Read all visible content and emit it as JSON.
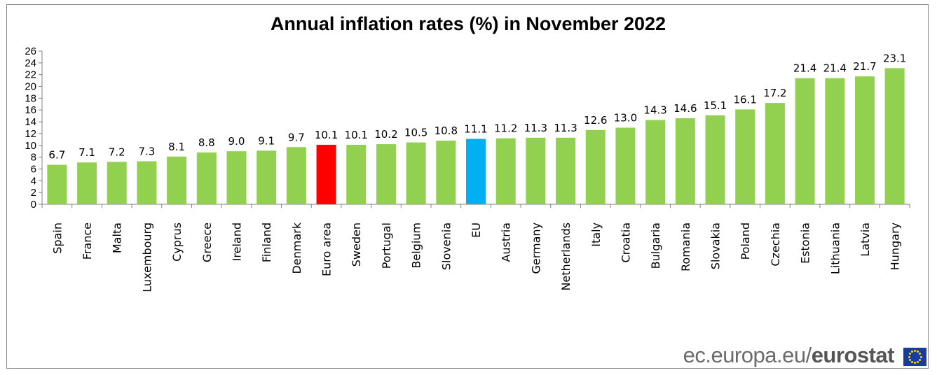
{
  "footer": {
    "domain_text": "ec.europa.eu/",
    "brand_text": "eurostat"
  },
  "logo": {
    "icon": "eu-flag-icon"
  },
  "colors": {
    "default_bar": "#92d050",
    "euro_area_bar": "#ff0000",
    "eu_bar": "#00b0f0",
    "axis": "#808080"
  },
  "chart_data": {
    "type": "bar",
    "title": "Annual inflation rates (%) in November 2022",
    "xlabel": "",
    "ylabel": "",
    "ylim": [
      0,
      26
    ],
    "yticks": [
      0,
      2,
      4,
      6,
      8,
      10,
      12,
      14,
      16,
      18,
      20,
      22,
      24,
      26
    ],
    "grid": false,
    "legend": "none",
    "categories": [
      "Spain",
      "France",
      "Malta",
      "Luxembourg",
      "Cyprus",
      "Greece",
      "Ireland",
      "Finland",
      "Denmark",
      "Euro area",
      "Sweden",
      "Portugal",
      "Belgium",
      "Slovenia",
      "EU",
      "Austria",
      "Germany",
      "Netherlands",
      "Italy",
      "Croatia",
      "Bulgaria",
      "Romania",
      "Slovakia",
      "Poland",
      "Czechia",
      "Estonia",
      "Lithuania",
      "Latvia",
      "Hungary"
    ],
    "values": [
      6.7,
      7.1,
      7.2,
      7.3,
      8.1,
      8.8,
      9.0,
      9.1,
      9.7,
      10.1,
      10.1,
      10.2,
      10.5,
      10.8,
      11.1,
      11.2,
      11.3,
      11.3,
      12.6,
      13.0,
      14.3,
      14.6,
      15.1,
      16.1,
      17.2,
      21.4,
      21.4,
      21.7,
      23.1
    ],
    "data_labels": [
      "6.7",
      "7.1",
      "7.2",
      "7.3",
      "8.1",
      "8.8",
      "9.0",
      "9.1",
      "9.7",
      "10.1",
      "10.1",
      "10.2",
      "10.5",
      "10.8",
      "11.1",
      "11.2",
      "11.3",
      "11.3",
      "12.6",
      "13.0",
      "14.3",
      "14.6",
      "15.1",
      "16.1",
      "17.2",
      "21.4",
      "21.4",
      "21.7",
      "23.1"
    ],
    "highlights": {
      "Euro area": "#ff0000",
      "EU": "#00b0f0"
    }
  }
}
